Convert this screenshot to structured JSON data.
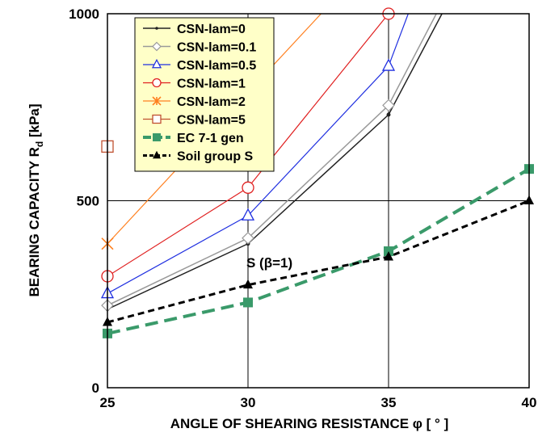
{
  "chart_data": {
    "type": "line",
    "title": "",
    "xlabel": "ANGLE OF SHEARING RESISTANCE φ [ ° ]",
    "ylabel": "BEARING CAPACITY  R",
    "ylabel_sub": "d",
    "ylabel_unit": "  [kPa]",
    "xlim": [
      25,
      40
    ],
    "ylim": [
      0,
      1000
    ],
    "x_ticks": [
      25,
      30,
      35,
      40
    ],
    "y_ticks": [
      0,
      500,
      1000
    ],
    "grid": true,
    "legend_position": "top-left",
    "annotation": "S (β=1)",
    "series": [
      {
        "name": "CSN-lam=0",
        "color": "#222222",
        "width": 1.5,
        "dash": "",
        "marker": "dot",
        "x": [
          25,
          30,
          35,
          36.9
        ],
        "y": [
          210,
          385,
          730,
          1000
        ]
      },
      {
        "name": "CSN-lam=0.1",
        "color": "#999999",
        "width": 1.5,
        "dash": "",
        "marker": "diamond",
        "x": [
          25,
          30,
          35,
          36.7
        ],
        "y": [
          220,
          400,
          755,
          1000
        ]
      },
      {
        "name": "CSN-lam=0.5",
        "color": "#1f2fe0",
        "width": 1.2,
        "dash": "",
        "marker": "triangle-open",
        "x": [
          25,
          30,
          35,
          35.7
        ],
        "y": [
          252,
          460,
          860,
          1000
        ]
      },
      {
        "name": "CSN-lam=1",
        "color": "#e02020",
        "width": 1.2,
        "dash": "",
        "marker": "circle-open",
        "x": [
          25,
          30,
          35
        ],
        "y": [
          298,
          535,
          1000
        ]
      },
      {
        "name": "CSN-lam=2",
        "color": "#ff8020",
        "width": 1.2,
        "dash": "",
        "marker": "star",
        "x": [
          25,
          32.6
        ],
        "y": [
          385,
          1000
        ]
      },
      {
        "name": "CSN-lam=5",
        "color": "#c05030",
        "width": 1.2,
        "dash": "",
        "marker": "square-open",
        "x": [
          25
        ],
        "y": [
          645
        ]
      },
      {
        "name": "EC 7-1 gen",
        "color": "#3a9a6a",
        "width": 4,
        "dash": "16,8",
        "marker": "square",
        "x": [
          25,
          30,
          35,
          40
        ],
        "y": [
          145,
          228,
          365,
          585
        ]
      },
      {
        "name": "Soil group S",
        "color": "#000000",
        "width": 3,
        "dash": "8,5",
        "marker": "triangle",
        "x": [
          25,
          30,
          35,
          40
        ],
        "y": [
          175,
          275,
          350,
          500
        ]
      }
    ]
  }
}
